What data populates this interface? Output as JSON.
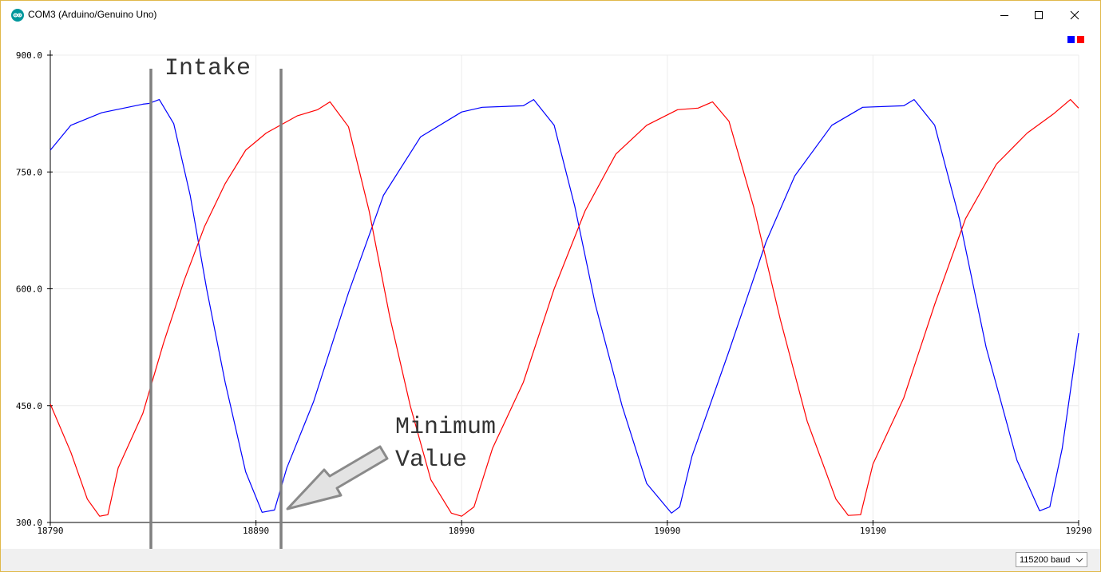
{
  "window": {
    "title": "COM3 (Arduino/Genuino Uno)"
  },
  "status_bar": {
    "baud_rate": "115200 baud"
  },
  "annotations": {
    "intake_label": "Intake",
    "minimum_label_line1": "Minimum",
    "minimum_label_line2": "Value"
  },
  "colors": {
    "series_blue": "#0000ff",
    "series_red": "#ff0000",
    "annotation_gray": "#808080"
  },
  "chart_data": {
    "type": "line",
    "title": "",
    "xlabel": "",
    "ylabel": "",
    "xlim": [
      18790,
      19290
    ],
    "ylim": [
      300,
      900
    ],
    "x_ticks": [
      "18790",
      "18890",
      "18990",
      "19090",
      "19190",
      "19290"
    ],
    "y_ticks": [
      "300.0",
      "450.0",
      "600.0",
      "750.0",
      "900.0"
    ],
    "grid": true,
    "legend": "top-right",
    "series": [
      {
        "color": "#0000ff",
        "points": [
          [
            18790,
            778
          ],
          [
            18800,
            810
          ],
          [
            18815,
            826
          ],
          [
            18835,
            837
          ],
          [
            18838,
            838
          ],
          [
            18843,
            843
          ],
          [
            18850,
            812
          ],
          [
            18858,
            720
          ],
          [
            18866,
            600
          ],
          [
            18875,
            480
          ],
          [
            18885,
            365
          ],
          [
            18893,
            313
          ],
          [
            18899,
            316
          ],
          [
            18905,
            370
          ],
          [
            18918,
            455
          ],
          [
            18935,
            595
          ],
          [
            18952,
            720
          ],
          [
            18970,
            795
          ],
          [
            18990,
            827
          ],
          [
            19000,
            833
          ],
          [
            19020,
            835
          ],
          [
            19025,
            843
          ],
          [
            19035,
            810
          ],
          [
            19045,
            706
          ],
          [
            19055,
            580
          ],
          [
            19068,
            450
          ],
          [
            19080,
            350
          ],
          [
            19092,
            312
          ],
          [
            19096,
            320
          ],
          [
            19102,
            385
          ],
          [
            19120,
            520
          ],
          [
            19138,
            660
          ],
          [
            19152,
            745
          ],
          [
            19170,
            810
          ],
          [
            19185,
            833
          ],
          [
            19205,
            835
          ],
          [
            19210,
            843
          ],
          [
            19220,
            810
          ],
          [
            19232,
            690
          ],
          [
            19245,
            525
          ],
          [
            19260,
            380
          ],
          [
            19271,
            315
          ],
          [
            19276,
            320
          ],
          [
            19282,
            395
          ],
          [
            19290,
            543
          ]
        ]
      },
      {
        "color": "#ff0000",
        "points": [
          [
            18790,
            452
          ],
          [
            18800,
            390
          ],
          [
            18808,
            330
          ],
          [
            18814,
            308
          ],
          [
            18818,
            310
          ],
          [
            18823,
            370
          ],
          [
            18835,
            440
          ],
          [
            18845,
            530
          ],
          [
            18855,
            610
          ],
          [
            18865,
            680
          ],
          [
            18875,
            735
          ],
          [
            18885,
            778
          ],
          [
            18895,
            800
          ],
          [
            18910,
            822
          ],
          [
            18920,
            830
          ],
          [
            18926,
            840
          ],
          [
            18935,
            808
          ],
          [
            18945,
            700
          ],
          [
            18955,
            565
          ],
          [
            18965,
            450
          ],
          [
            18975,
            355
          ],
          [
            18985,
            312
          ],
          [
            18990,
            308
          ],
          [
            18996,
            320
          ],
          [
            19005,
            395
          ],
          [
            19020,
            480
          ],
          [
            19035,
            600
          ],
          [
            19050,
            700
          ],
          [
            19065,
            773
          ],
          [
            19080,
            810
          ],
          [
            19095,
            830
          ],
          [
            19105,
            832
          ],
          [
            19112,
            840
          ],
          [
            19120,
            815
          ],
          [
            19132,
            705
          ],
          [
            19145,
            560
          ],
          [
            19158,
            430
          ],
          [
            19172,
            330
          ],
          [
            19178,
            309
          ],
          [
            19184,
            310
          ],
          [
            19190,
            375
          ],
          [
            19205,
            460
          ],
          [
            19220,
            580
          ],
          [
            19235,
            690
          ],
          [
            19250,
            760
          ],
          [
            19265,
            800
          ],
          [
            19278,
            825
          ],
          [
            19286,
            843
          ],
          [
            19290,
            832
          ]
        ]
      }
    ]
  }
}
